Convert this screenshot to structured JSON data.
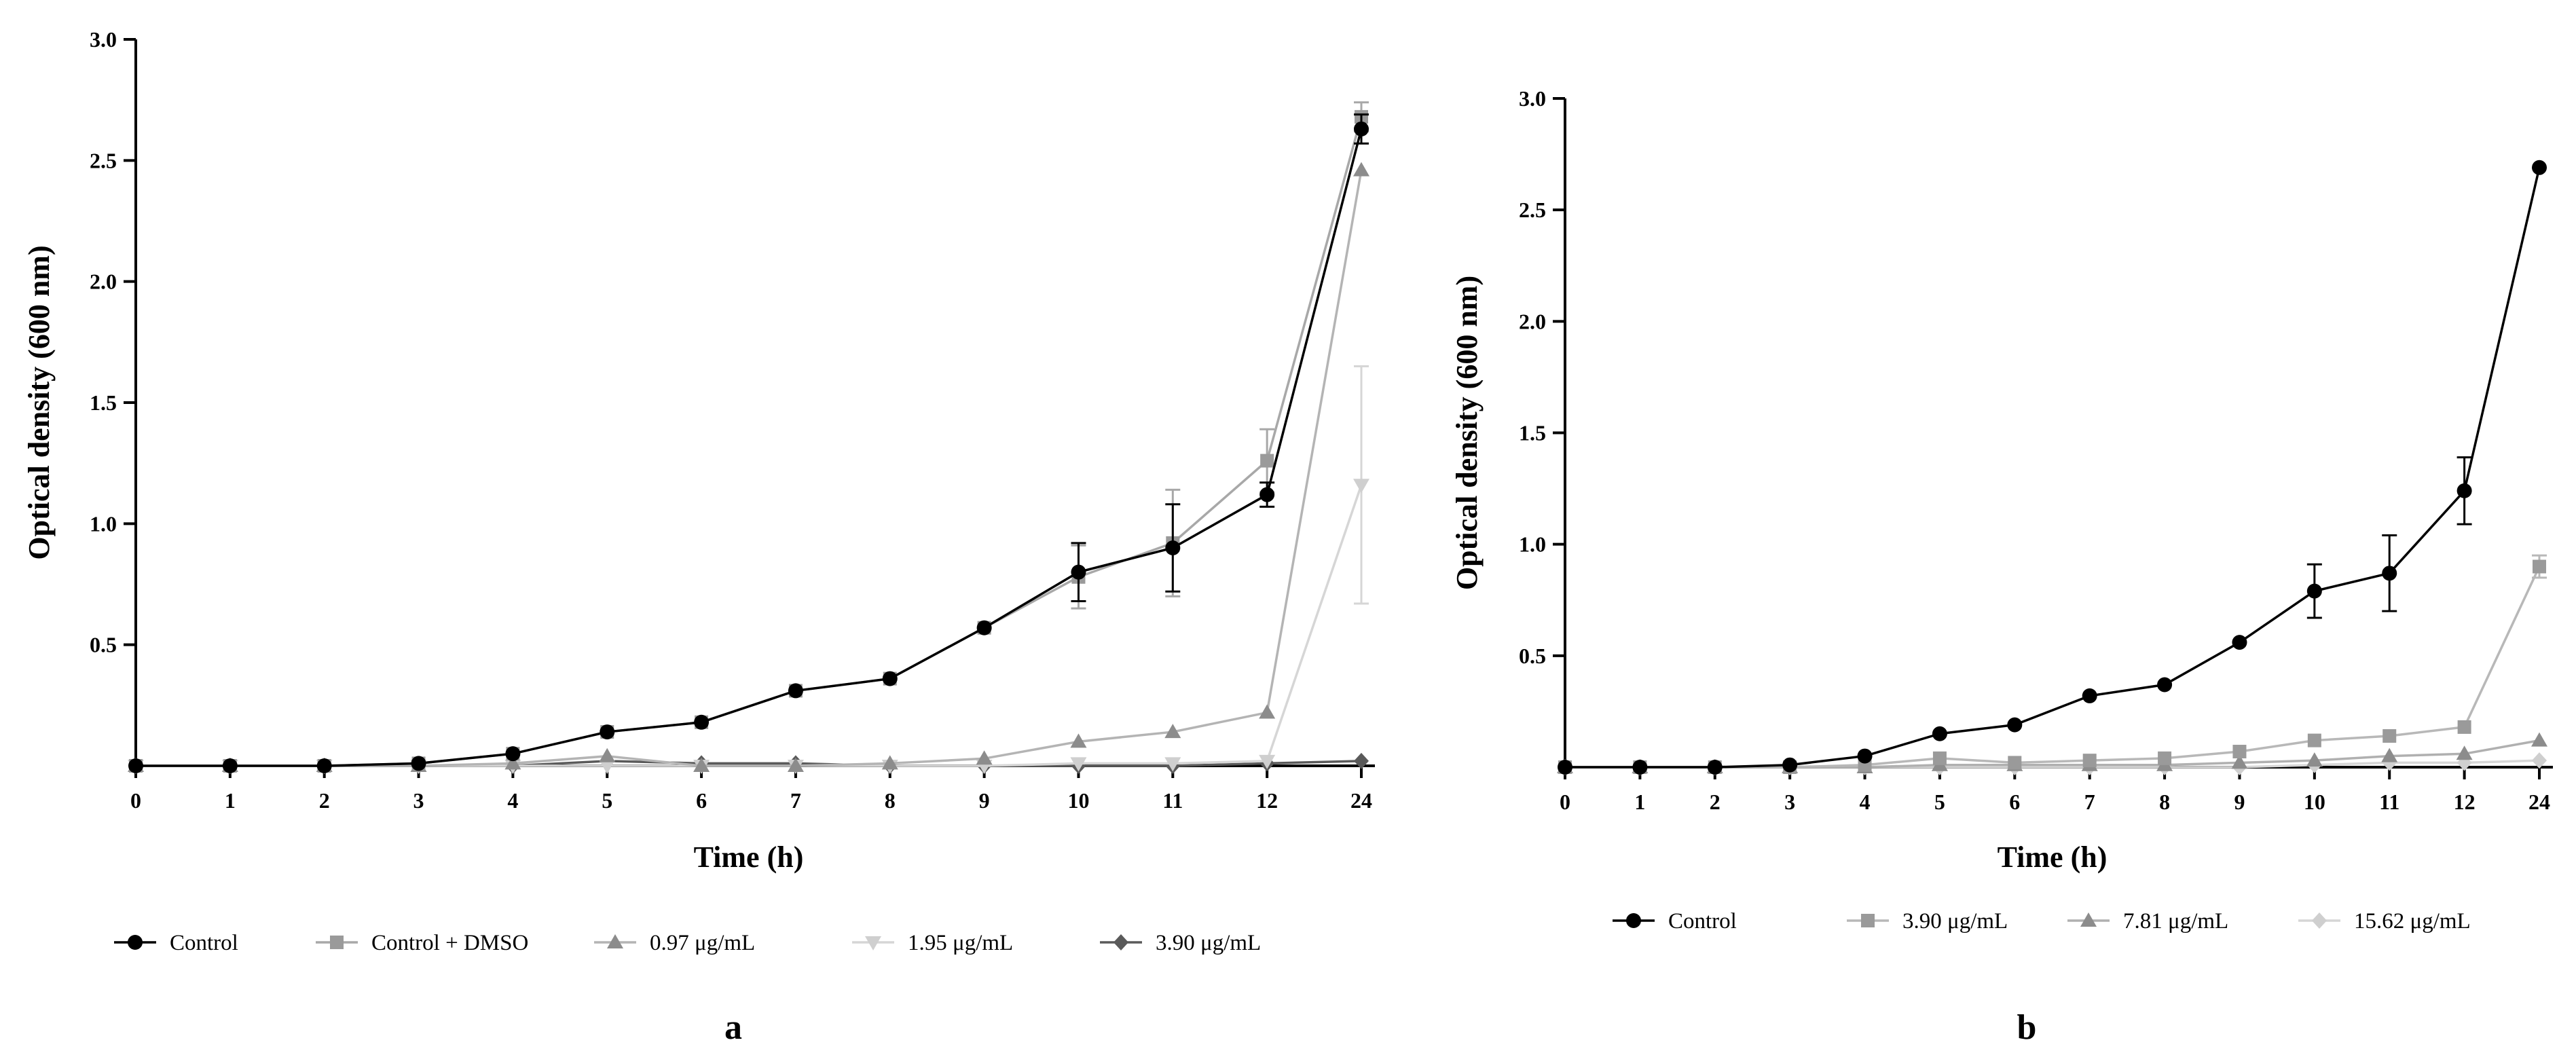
{
  "figure_labels": [
    "a",
    "b"
  ],
  "chart_data": [
    {
      "type": "line",
      "panel": "a",
      "xlabel": "Time (h)",
      "ylabel": "Optical density (600 nm)",
      "categories": [
        "0",
        "1",
        "2",
        "3",
        "4",
        "5",
        "6",
        "7",
        "8",
        "9",
        "10",
        "11",
        "12",
        "24"
      ],
      "ylim": [
        0,
        3.0
      ],
      "yticks": [
        "3.0",
        "2.5",
        "2.0",
        "1.5",
        "1.0",
        "0.5"
      ],
      "ytick_values": [
        3.0,
        2.5,
        2.0,
        1.5,
        1.0,
        0.5
      ],
      "legend_position": "bottom",
      "series": [
        {
          "name": "Control",
          "marker": "circle",
          "color": "#000000",
          "line_color": "#000000",
          "values": [
            0.0,
            0.0,
            0.0,
            0.01,
            0.05,
            0.14,
            0.18,
            0.31,
            0.36,
            0.57,
            0.8,
            0.9,
            1.12,
            2.63
          ],
          "errors": [
            0,
            0,
            0,
            0,
            0,
            0,
            0,
            0,
            0,
            0,
            0.12,
            0.18,
            0.05,
            0.06
          ]
        },
        {
          "name": "Control + DMSO",
          "marker": "square",
          "color": "#9a9a9a",
          "line_color": "#a8a8a8",
          "values": [
            0.0,
            0.0,
            0.0,
            0.01,
            0.05,
            0.14,
            0.18,
            0.31,
            0.36,
            0.57,
            0.78,
            0.92,
            1.26,
            2.68
          ],
          "errors": [
            0,
            0,
            0,
            0,
            0,
            0,
            0,
            0,
            0,
            0,
            0.13,
            0.22,
            0.13,
            0.06
          ]
        },
        {
          "name": "0.97 μg/mL",
          "marker": "triangle",
          "color": "#8c8c8c",
          "line_color": "#b4b4b4",
          "values": [
            0.0,
            0.0,
            0.0,
            0.0,
            0.01,
            0.04,
            0.0,
            0.0,
            0.01,
            0.03,
            0.1,
            0.14,
            0.22,
            2.46
          ],
          "errors": [
            0,
            0,
            0,
            0,
            0,
            0,
            0,
            0,
            0,
            0,
            0,
            0,
            0,
            0
          ]
        },
        {
          "name": "1.95 μg/mL",
          "marker": "triangle-down",
          "color": "#cfcfcf",
          "line_color": "#d6d6d6",
          "values": [
            0.0,
            0.0,
            0.0,
            0.0,
            0.0,
            0.0,
            0.0,
            0.0,
            0.0,
            0.0,
            0.01,
            0.01,
            0.02,
            1.16
          ],
          "errors": [
            0,
            0,
            0,
            0,
            0,
            0,
            0,
            0,
            0,
            0,
            0,
            0,
            0,
            0.49
          ]
        },
        {
          "name": "3.90 μg/mL",
          "marker": "diamond",
          "color": "#5a5a5a",
          "line_color": "#5a5a5a",
          "values": [
            0.0,
            0.0,
            0.0,
            0.0,
            0.0,
            0.02,
            0.01,
            0.01,
            0.0,
            0.0,
            0.0,
            0.0,
            0.01,
            0.02
          ],
          "errors": [
            0,
            0,
            0,
            0,
            0,
            0,
            0,
            0,
            0,
            0,
            0,
            0,
            0,
            0
          ]
        }
      ]
    },
    {
      "type": "line",
      "panel": "b",
      "xlabel": "Time (h)",
      "ylabel": "Optical density (600 nm)",
      "categories": [
        "0",
        "1",
        "2",
        "3",
        "4",
        "5",
        "6",
        "7",
        "8",
        "9",
        "10",
        "11",
        "12",
        "24"
      ],
      "ylim": [
        0,
        3.0
      ],
      "yticks": [
        "3.0",
        "2.5",
        "2.0",
        "1.5",
        "1.0",
        "0.5"
      ],
      "ytick_values": [
        3.0,
        2.5,
        2.0,
        1.5,
        1.0,
        0.5
      ],
      "legend_position": "bottom",
      "series": [
        {
          "name": "Control",
          "marker": "circle",
          "color": "#000000",
          "line_color": "#000000",
          "values": [
            0.0,
            0.0,
            0.0,
            0.01,
            0.05,
            0.15,
            0.19,
            0.32,
            0.37,
            0.56,
            0.79,
            0.87,
            1.24,
            2.69
          ],
          "errors": [
            0,
            0,
            0,
            0,
            0,
            0,
            0,
            0,
            0,
            0,
            0.12,
            0.17,
            0.15,
            0
          ]
        },
        {
          "name": "3.90 μg/mL",
          "marker": "square",
          "color": "#9a9a9a",
          "line_color": "#b8b8b8",
          "values": [
            0.0,
            0.0,
            0.0,
            0.0,
            0.01,
            0.04,
            0.02,
            0.03,
            0.04,
            0.07,
            0.12,
            0.14,
            0.18,
            0.9
          ],
          "errors": [
            0,
            0,
            0,
            0,
            0,
            0,
            0,
            0,
            0,
            0,
            0,
            0,
            0,
            0.05
          ]
        },
        {
          "name": "7.81 μg/mL",
          "marker": "triangle",
          "color": "#8c8c8c",
          "line_color": "#b0b0b0",
          "values": [
            0.0,
            0.0,
            0.0,
            0.0,
            0.0,
            0.01,
            0.01,
            0.01,
            0.01,
            0.02,
            0.03,
            0.05,
            0.06,
            0.12
          ],
          "errors": [
            0,
            0,
            0,
            0,
            0,
            0,
            0,
            0,
            0,
            0,
            0,
            0,
            0,
            0
          ]
        },
        {
          "name": "15.62 μg/mL",
          "marker": "diamond",
          "color": "#cfcfcf",
          "line_color": "#d6d6d6",
          "values": [
            0.0,
            0.0,
            0.0,
            0.0,
            0.0,
            0.0,
            0.0,
            0.0,
            0.0,
            0.0,
            0.01,
            0.02,
            0.02,
            0.03
          ],
          "errors": [
            0,
            0,
            0,
            0,
            0,
            0,
            0,
            0,
            0,
            0,
            0,
            0,
            0,
            0
          ]
        }
      ]
    }
  ]
}
